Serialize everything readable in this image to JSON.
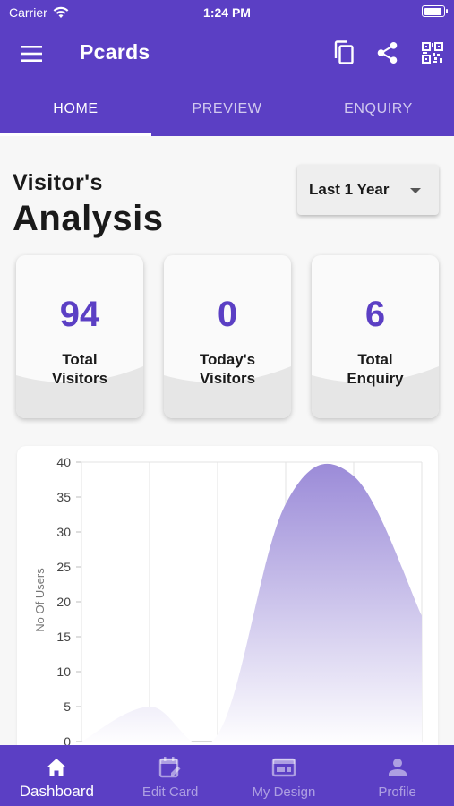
{
  "status_bar": {
    "carrier": "Carrier",
    "time": "1:24 PM",
    "battery_level": 0.95
  },
  "app_bar": {
    "title": "Pcards",
    "menu_icon": "hamburger-menu-icon",
    "actions": [
      {
        "icon": "copy-icon"
      },
      {
        "icon": "share-icon"
      },
      {
        "icon": "qr-code-icon"
      }
    ]
  },
  "tabs": [
    {
      "label": "HOME",
      "active": true
    },
    {
      "label": "PREVIEW",
      "active": false
    },
    {
      "label": "ENQUIRY",
      "active": false
    }
  ],
  "analysis": {
    "heading_small": "Visitor's",
    "heading_big": "Analysis",
    "period": "Last 1 Year"
  },
  "stats": [
    {
      "value": "94",
      "label_line1": "Total",
      "label_line2": "Visitors"
    },
    {
      "value": "0",
      "label_line1": "Today's",
      "label_line2": "Visitors"
    },
    {
      "value": "6",
      "label_line1": "Total",
      "label_line2": "Enquiry"
    }
  ],
  "chart_data": {
    "type": "area",
    "ylabel": "No Of Users",
    "ylim": [
      0,
      40
    ],
    "yticks": [
      0,
      5,
      10,
      15,
      20,
      25,
      30,
      35,
      40
    ],
    "x": [
      0,
      1,
      2,
      3,
      4,
      5
    ],
    "values": [
      0,
      5,
      1,
      34,
      38,
      18
    ],
    "grid": true,
    "colors": {
      "fill_top": "#9b8bd8",
      "fill_bottom": "#ffffff"
    }
  },
  "bottom_nav": [
    {
      "label": "Dashboard",
      "icon": "home-icon",
      "active": true
    },
    {
      "label": "Edit Card",
      "icon": "edit-calendar-icon",
      "active": false
    },
    {
      "label": "My Design",
      "icon": "design-icon",
      "active": false
    },
    {
      "label": "Profile",
      "icon": "person-icon",
      "active": false
    }
  ],
  "colors": {
    "primary": "#5b3fc4",
    "accent_text": "#5b3fc4",
    "background": "#f7f7f7"
  }
}
